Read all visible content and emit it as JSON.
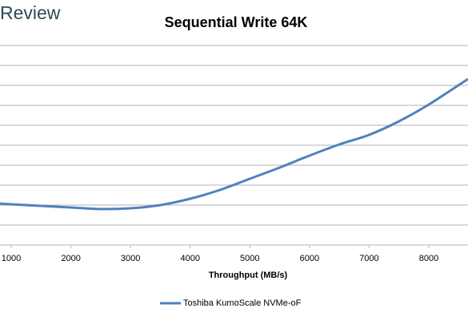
{
  "header": {
    "brand": "Review"
  },
  "chart_data": {
    "type": "line",
    "title": "Sequential Write 64K",
    "x_label": "Throughput (MB/s)",
    "x": [
      812,
      1000,
      2000,
      2500,
      3000,
      3500,
      4000,
      4500,
      5000,
      5500,
      6000,
      6500,
      7000,
      7500,
      8000,
      8657
    ],
    "series": [
      {
        "name": "Toshiba KumoScale NVMe-oF",
        "color": "#4f81bd",
        "values": [
          2.08,
          2.04,
          1.88,
          1.8,
          1.84,
          2.0,
          2.32,
          2.76,
          3.32,
          3.88,
          4.48,
          5.04,
          5.52,
          6.2,
          7.04,
          8.32
        ]
      }
    ],
    "xlim": [
      812,
      8657
    ],
    "xticks": [
      1000,
      2000,
      3000,
      4000,
      5000,
      6000,
      7000,
      8000
    ],
    "ylim": [
      0,
      10
    ],
    "yticks": [
      0,
      1,
      2,
      3,
      4,
      5,
      6,
      7,
      8,
      9,
      10
    ],
    "ytick_labels": false,
    "grid": true,
    "legend": "bottom"
  }
}
